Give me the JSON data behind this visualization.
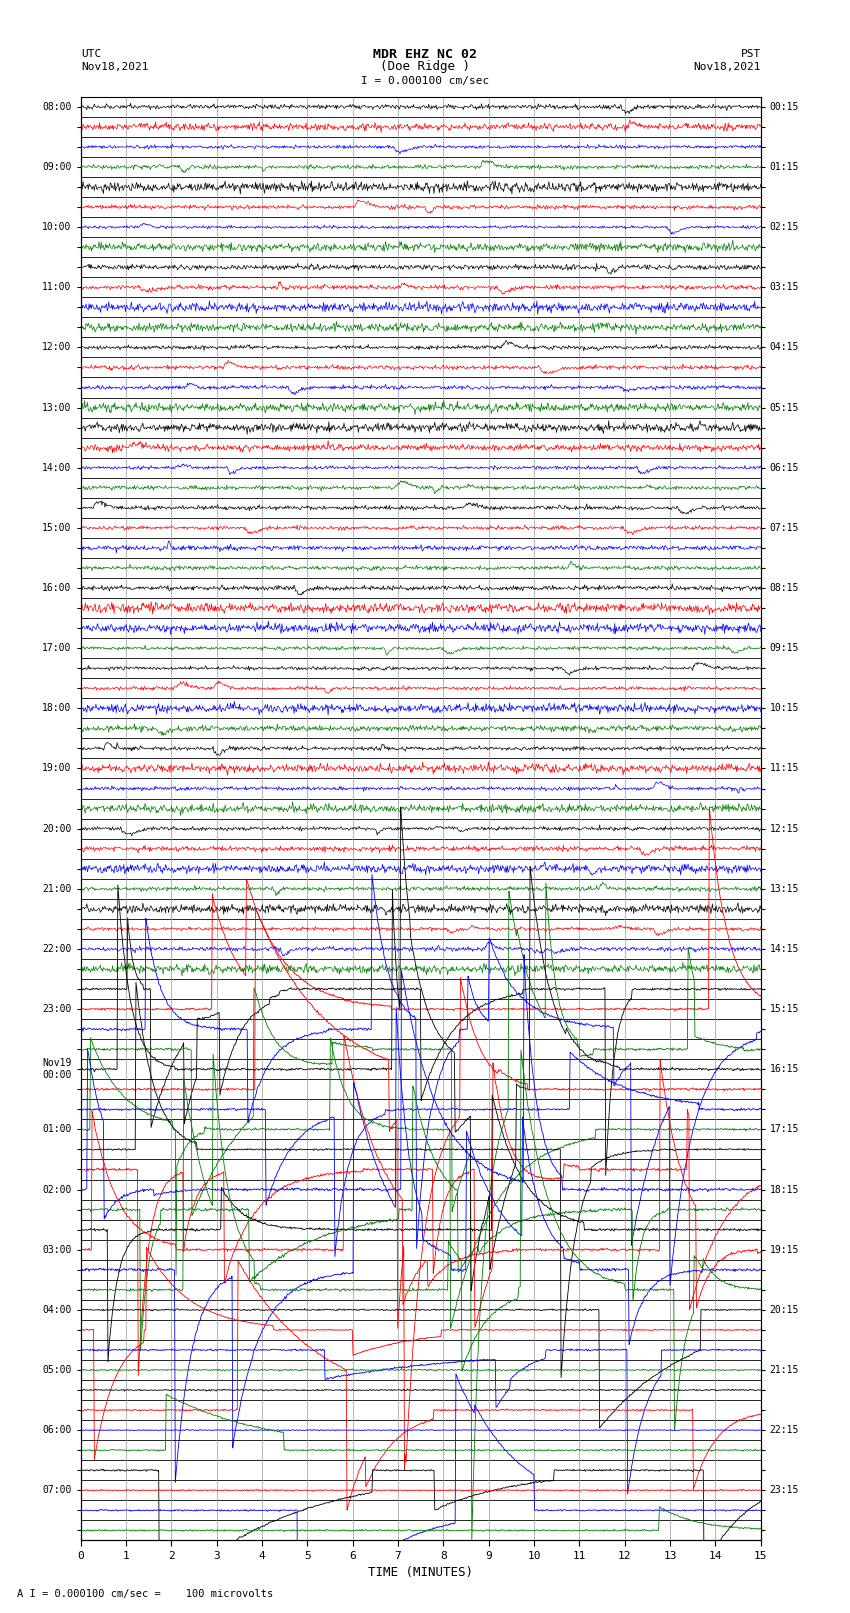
{
  "title_line1": "MDR EHZ NC 02",
  "title_line2": "(Doe Ridge )",
  "scale_label": "I = 0.000100 cm/sec",
  "utc_label1": "UTC",
  "utc_label2": "Nov18,2021",
  "pst_label1": "PST",
  "pst_label2": "Nov18,2021",
  "footer_label": "A I = 0.000100 cm/sec =    100 microvolts",
  "xlabel": "TIME (MINUTES)",
  "left_times": [
    "08:00",
    "",
    "",
    "09:00",
    "",
    "",
    "10:00",
    "",
    "",
    "11:00",
    "",
    "",
    "12:00",
    "",
    "",
    "13:00",
    "",
    "",
    "14:00",
    "",
    "",
    "15:00",
    "",
    "",
    "16:00",
    "",
    "",
    "17:00",
    "",
    "",
    "18:00",
    "",
    "",
    "19:00",
    "",
    "",
    "20:00",
    "",
    "",
    "21:00",
    "",
    "",
    "22:00",
    "",
    "",
    "23:00",
    "",
    "",
    "Nov19\n00:00",
    "",
    "",
    "01:00",
    "",
    "",
    "02:00",
    "",
    "",
    "03:00",
    "",
    "",
    "04:00",
    "",
    "",
    "05:00",
    "",
    "",
    "06:00",
    "",
    "",
    "07:00",
    "",
    ""
  ],
  "right_times": [
    "00:15",
    "",
    "",
    "01:15",
    "",
    "",
    "02:15",
    "",
    "",
    "03:15",
    "",
    "",
    "04:15",
    "",
    "",
    "05:15",
    "",
    "",
    "06:15",
    "",
    "",
    "07:15",
    "",
    "",
    "08:15",
    "",
    "",
    "09:15",
    "",
    "",
    "10:15",
    "",
    "",
    "11:15",
    "",
    "",
    "12:15",
    "",
    "",
    "13:15",
    "",
    "",
    "14:15",
    "",
    "",
    "15:15",
    "",
    "",
    "16:15",
    "",
    "",
    "17:15",
    "",
    "",
    "18:15",
    "",
    "",
    "19:15",
    "",
    "",
    "20:15",
    "",
    "",
    "21:15",
    "",
    "",
    "22:15",
    "",
    "",
    "23:15",
    "",
    ""
  ],
  "n_traces": 72,
  "n_points": 900,
  "colors_cycle": [
    "black",
    "red",
    "blue",
    "green"
  ],
  "bg_color": "#ffffff",
  "grid_color": "#999999",
  "xmin": 0,
  "xmax": 15,
  "xticks": [
    0,
    1,
    2,
    3,
    4,
    5,
    6,
    7,
    8,
    9,
    10,
    11,
    12,
    13,
    14,
    15
  ],
  "figure_width": 8.5,
  "figure_height": 16.13,
  "dpi": 100
}
